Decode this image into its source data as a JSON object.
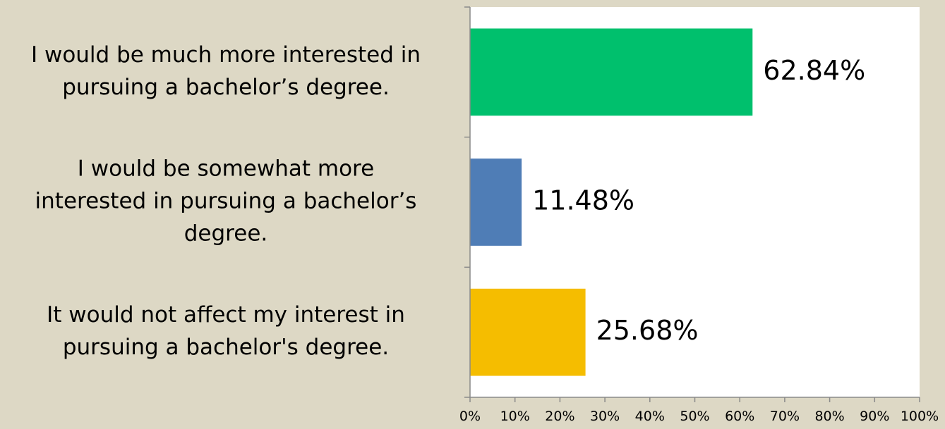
{
  "chart_data": {
    "type": "bar",
    "orientation": "horizontal",
    "title": "",
    "xlabel": "",
    "ylabel": "",
    "categories": [
      "I would be much more interested in pursuing a bachelor’s degree.",
      "I would be somewhat more interested in pursuing a bachelor’s degree.",
      "It would not affect my interest in pursuing a bachelor's degree."
    ],
    "category_lines": [
      [
        "I would be much more interested in",
        "pursuing a bachelor’s degree."
      ],
      [
        "I would be somewhat more",
        "interested in pursuing a bachelor’s",
        "degree."
      ],
      [
        "It would not affect my interest in",
        "pursuing a bachelor's degree."
      ]
    ],
    "values": [
      62.84,
      11.48,
      25.68
    ],
    "data_labels": [
      "62.84%",
      "11.48%",
      "25.68%"
    ],
    "colors": [
      "#00c06d",
      "#4f7db6",
      "#f5bd00"
    ],
    "xlim": [
      0,
      100
    ],
    "x_ticks": [
      "0%",
      "10%",
      "20%",
      "30%",
      "40%",
      "50%",
      "60%",
      "70%",
      "80%",
      "90%",
      "100%"
    ],
    "grid": false,
    "legend": "none",
    "background": "#ddd8c5",
    "plot_background": "#ffffff"
  }
}
